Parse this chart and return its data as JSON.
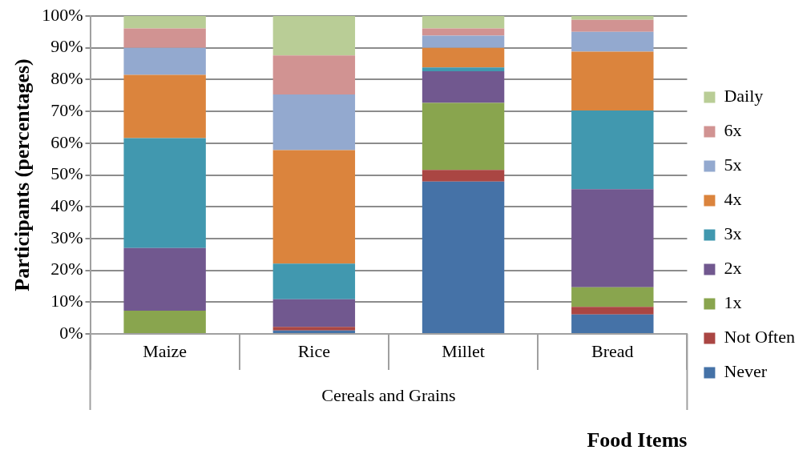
{
  "chart_data": {
    "type": "bar",
    "stacked": true,
    "ylabel": "Participants (percentages)",
    "xlabel": "Food Items",
    "annotations": [
      "Cereals and Grains"
    ],
    "categories": [
      "Maize",
      "Rice",
      "Millet",
      "Bread"
    ],
    "ylim": [
      0,
      100
    ],
    "yticks": [
      {
        "value": 0,
        "label": "0%"
      },
      {
        "value": 10,
        "label": "10%"
      },
      {
        "value": 20,
        "label": "20%"
      },
      {
        "value": 30,
        "label": "30%"
      },
      {
        "value": 40,
        "label": "40%"
      },
      {
        "value": 50,
        "label": "50%"
      },
      {
        "value": 60,
        "label": "60%"
      },
      {
        "value": 70,
        "label": "70%"
      },
      {
        "value": 80,
        "label": "80%"
      },
      {
        "value": 90,
        "label": "90%"
      },
      {
        "value": 100,
        "label": "100%"
      }
    ],
    "grid": "y",
    "legend": "right",
    "series": [
      {
        "name": "Never",
        "color": "#4572a7",
        "values": [
          0,
          1.1,
          47.9,
          6.1
        ]
      },
      {
        "name": "Not Often",
        "color": "#aa4643",
        "values": [
          0,
          1.1,
          3.7,
          2.4
        ]
      },
      {
        "name": "1x",
        "color": "#89a54e",
        "values": [
          7.3,
          0,
          21.1,
          6.2
        ]
      },
      {
        "name": "2x",
        "color": "#71588f",
        "values": [
          19.7,
          8.7,
          9.9,
          30.8
        ]
      },
      {
        "name": "3x",
        "color": "#4198af",
        "values": [
          34.6,
          11.2,
          1.2,
          24.8
        ]
      },
      {
        "name": "4x",
        "color": "#db843d",
        "values": [
          19.9,
          35.7,
          6.2,
          18.5
        ]
      },
      {
        "name": "5x",
        "color": "#93a9cf",
        "values": [
          8.5,
          17.5,
          3.8,
          6.2
        ]
      },
      {
        "name": "6x",
        "color": "#d19392",
        "values": [
          6.1,
          12.3,
          2.3,
          3.8
        ]
      },
      {
        "name": "Daily",
        "color": "#b9cd96",
        "values": [
          3.9,
          12.4,
          3.9,
          1.2
        ]
      }
    ]
  }
}
